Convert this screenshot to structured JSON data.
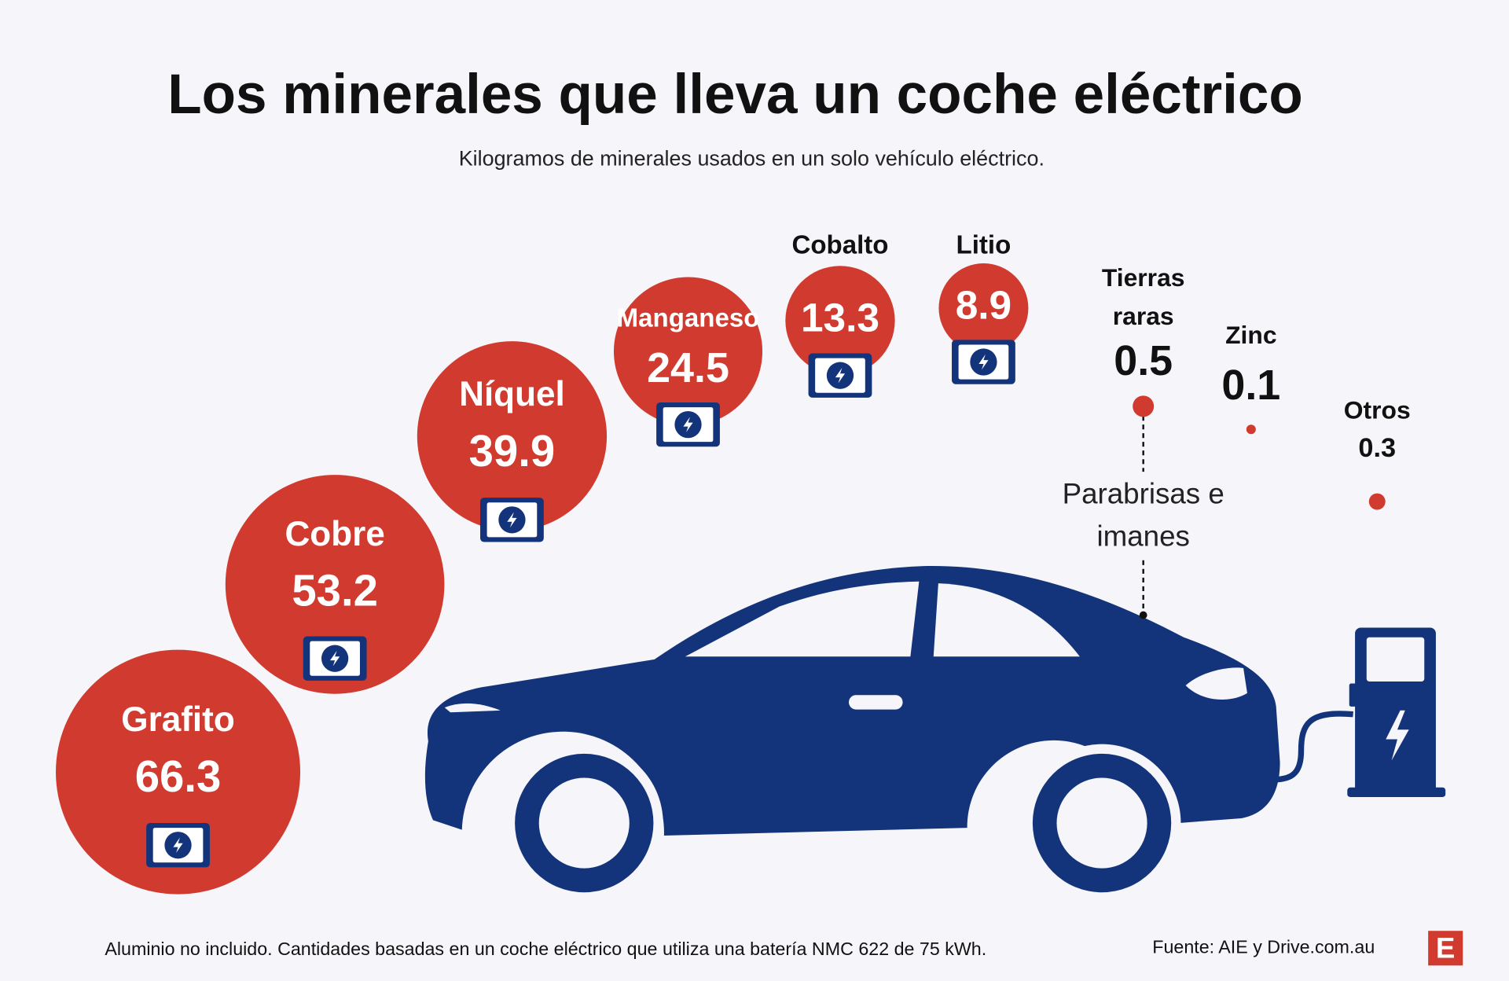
{
  "chart_data": {
    "type": "bubble",
    "title": "Los minerales que lleva un coche eléctrico",
    "subtitle": "Kilogramos de minerales usados en un solo vehículo eléctrico.",
    "categories": [
      "Grafito",
      "Cobre",
      "Níquel",
      "Manganeso",
      "Cobalto",
      "Litio",
      "Tierras raras",
      "Zinc",
      "Otros"
    ],
    "values": [
      66.3,
      53.2,
      39.9,
      24.5,
      13.3,
      8.9,
      0.5,
      0.1,
      0.3
    ],
    "color": "#d13b2f",
    "annotation": "Parabrisas e imanes",
    "note": "Aluminio no incluido. Cantidades basadas en un coche eléctrico que utiliza una batería NMC 622 de 75 kWh.",
    "source": "Fuente: AIE y Drive.com.au",
    "logo": "E"
  }
}
